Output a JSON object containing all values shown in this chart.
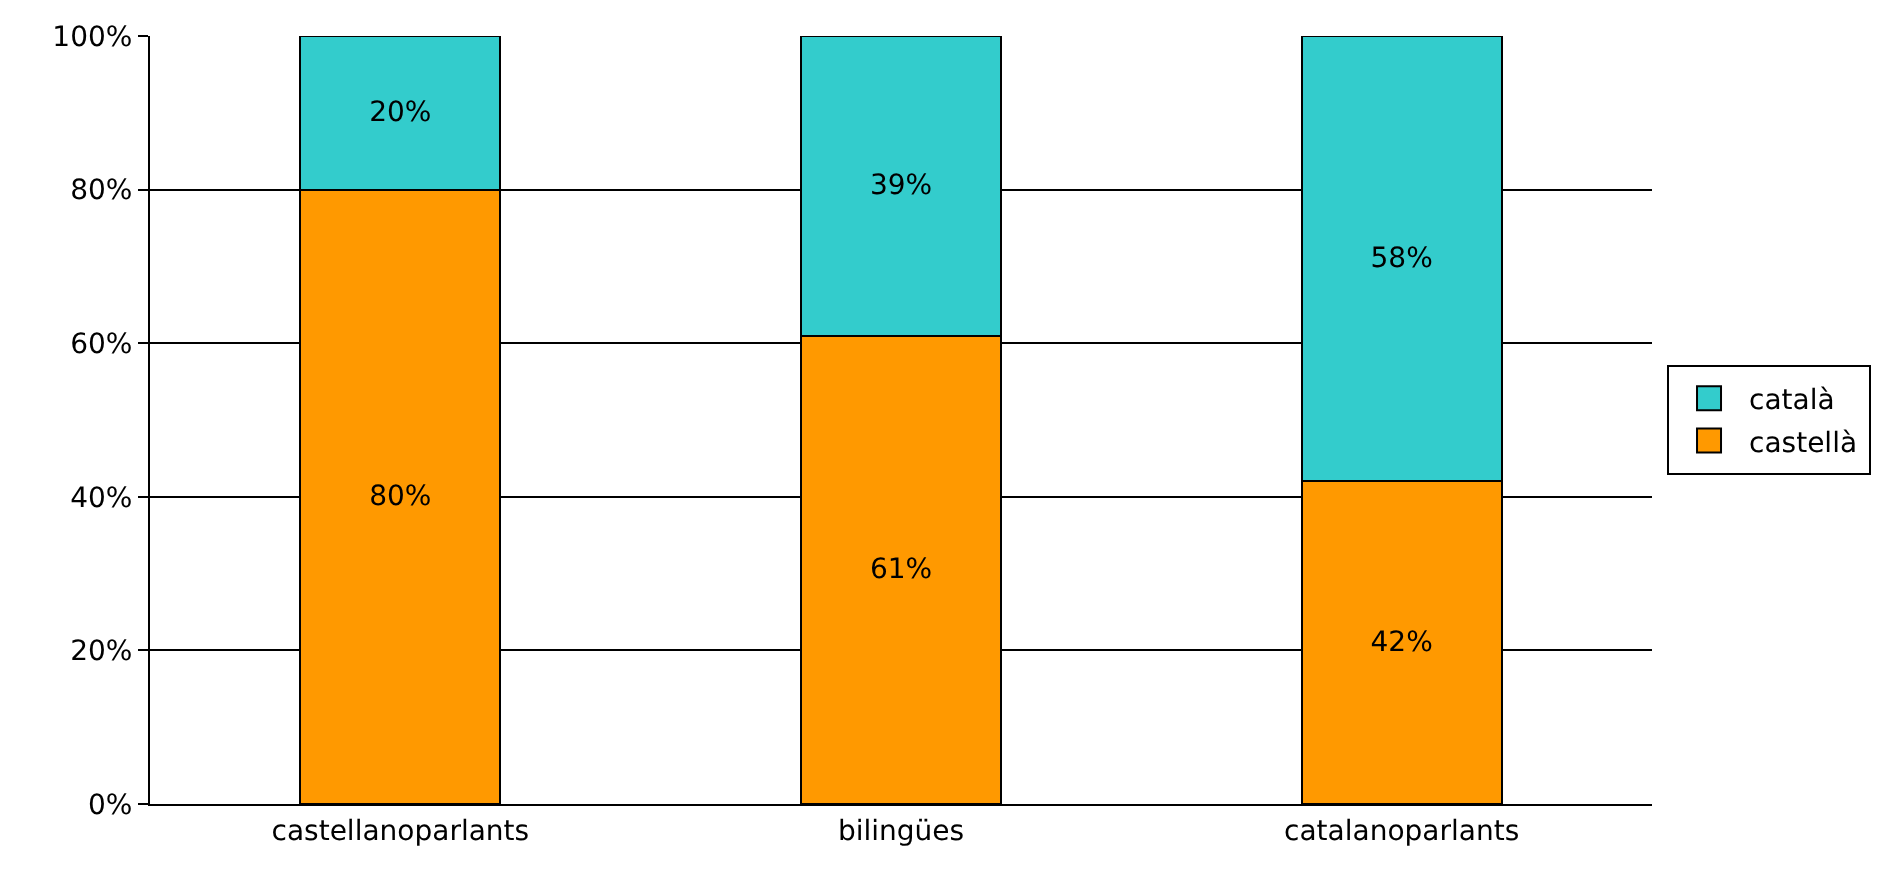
{
  "chart_data": {
    "type": "bar",
    "stacked": true,
    "categories": [
      "castellanoparlants",
      "bilingües",
      "catalanoparlants"
    ],
    "series": [
      {
        "name": "castellà",
        "color": "#ff9900",
        "values": [
          80,
          61,
          42
        ],
        "value_labels": [
          "80%",
          "61%",
          "42%"
        ]
      },
      {
        "name": "català",
        "color": "#33cccc",
        "values": [
          20,
          39,
          58
        ],
        "value_labels": [
          "20%",
          "39%",
          "58%"
        ]
      }
    ],
    "ylim": [
      0,
      100
    ],
    "yticks": [
      {
        "value": 0,
        "label": "0%"
      },
      {
        "value": 20,
        "label": "20%"
      },
      {
        "value": 40,
        "label": "40%"
      },
      {
        "value": 60,
        "label": "60%"
      },
      {
        "value": 80,
        "label": "80%"
      },
      {
        "value": 100,
        "label": "100%"
      }
    ],
    "grid": "y",
    "legend": "right"
  }
}
